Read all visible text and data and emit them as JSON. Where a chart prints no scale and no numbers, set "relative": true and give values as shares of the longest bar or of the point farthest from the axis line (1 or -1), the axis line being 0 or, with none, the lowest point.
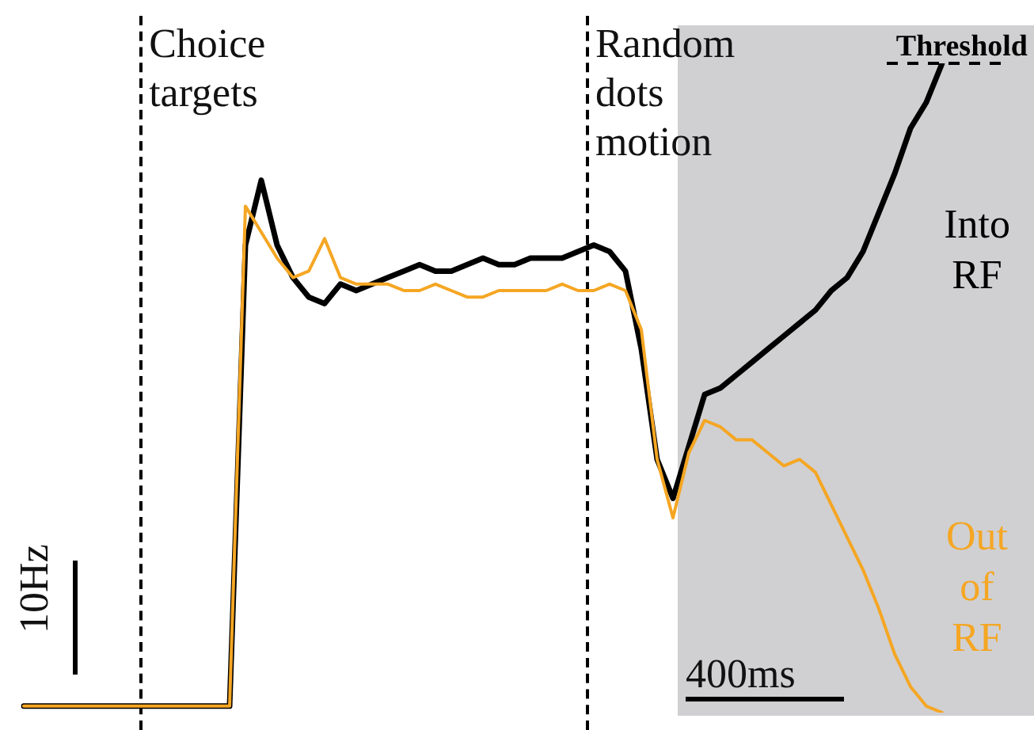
{
  "chart_data": {
    "type": "line",
    "relative": true,
    "legend": false,
    "marker": "none",
    "line_style": "solid",
    "categories": [
      null,
      null,
      null,
      null,
      null,
      null,
      null,
      null,
      null,
      null,
      null,
      null,
      null,
      null,
      null,
      null,
      null,
      null,
      null,
      null,
      null,
      null,
      null,
      null,
      null,
      null,
      null,
      null,
      null,
      null,
      null,
      null,
      null,
      null,
      null,
      null,
      null,
      null,
      null,
      null,
      null,
      null,
      null,
      null,
      null,
      null,
      null,
      null,
      null,
      null,
      null,
      null,
      null,
      null,
      null,
      null,
      null,
      null,
      null
    ],
    "series": [
      {
        "name": "Into RF",
        "color": "#000000",
        "values": [
          0.01,
          0.01,
          0.01,
          0.01,
          0.01,
          0.01,
          0.01,
          0.01,
          0.01,
          0.01,
          0.01,
          0.01,
          0.01,
          0.01,
          0.72,
          0.82,
          0.72,
          0.67,
          0.64,
          0.63,
          0.66,
          0.65,
          0.66,
          0.67,
          0.68,
          0.69,
          0.68,
          0.68,
          0.69,
          0.7,
          0.69,
          0.69,
          0.7,
          0.7,
          0.7,
          0.71,
          0.72,
          0.71,
          0.68,
          0.56,
          0.39,
          0.33,
          0.41,
          0.49,
          0.5,
          0.52,
          0.54,
          0.56,
          0.58,
          0.6,
          0.62,
          0.65,
          0.67,
          0.71,
          0.77,
          0.83,
          0.9,
          0.94,
          1
        ]
      },
      {
        "name": "Out of RF",
        "color": "#f5a623",
        "values": [
          0.01,
          0.01,
          0.01,
          0.01,
          0.01,
          0.01,
          0.01,
          0.01,
          0.01,
          0.01,
          0.01,
          0.01,
          0.01,
          0.01,
          0.78,
          0.74,
          0.7,
          0.67,
          0.68,
          0.73,
          0.67,
          0.66,
          0.66,
          0.66,
          0.65,
          0.65,
          0.66,
          0.65,
          0.64,
          0.64,
          0.65,
          0.65,
          0.65,
          0.65,
          0.66,
          0.65,
          0.65,
          0.66,
          0.65,
          0.59,
          0.39,
          0.3,
          0.4,
          0.45,
          0.44,
          0.42,
          0.42,
          0.4,
          0.38,
          0.39,
          0.37,
          0.32,
          0.27,
          0.22,
          0.16,
          0.09,
          0.04,
          0.01,
          0
        ]
      }
    ],
    "ref_lines": [
      {
        "axis": "y",
        "value": 1,
        "label": "Threshold",
        "line_style": "dashed",
        "color": "#000000"
      }
    ],
    "annotations": [
      "Choice targets",
      "Random dots motion",
      "10Hz",
      "400ms"
    ]
  }
}
